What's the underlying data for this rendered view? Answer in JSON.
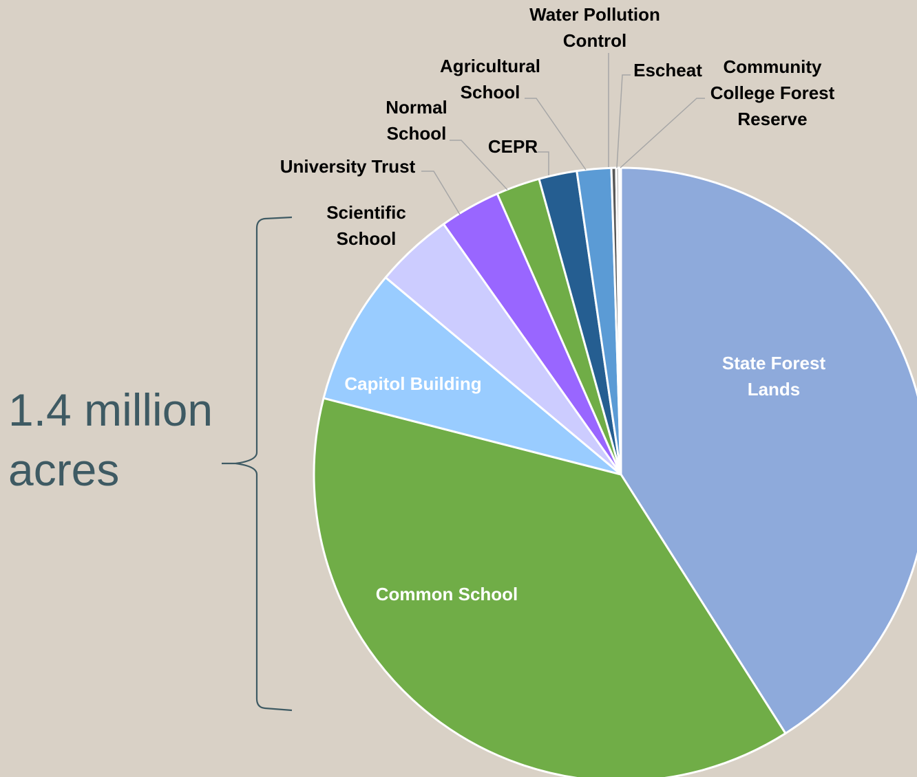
{
  "summary": {
    "line1": "1.4 million",
    "line2": "acres"
  },
  "chart_data": {
    "type": "pie",
    "title": "",
    "start_angle_deg": 0,
    "direction": "clockwise",
    "slices": [
      {
        "label": "State Forest Lands",
        "value": 41.0,
        "color": "#8EAADB",
        "label_color": "#FFFFFF",
        "label_inside": true
      },
      {
        "label": "Common School",
        "value": 38.0,
        "color": "#70AD47",
        "label_color": "#FFFFFF",
        "label_inside": true
      },
      {
        "label": "Capitol Building",
        "value": 7.1,
        "color": "#99CCFF",
        "label_color": "#FFFFFF",
        "label_inside": true
      },
      {
        "label": "Scientific School",
        "value": 4.1,
        "color": "#CCCCFF",
        "label_color": "#000000",
        "label_inside": false
      },
      {
        "label": "University Trust",
        "value": 3.2,
        "color": "#9966FF",
        "label_color": "#000000",
        "label_inside": false
      },
      {
        "label": "Normal School",
        "value": 2.3,
        "color": "#70AD47",
        "label_color": "#000000",
        "label_inside": false
      },
      {
        "label": "CEPR",
        "value": 2.0,
        "color": "#255E91",
        "label_color": "#000000",
        "label_inside": false
      },
      {
        "label": "Agricultural School",
        "value": 1.8,
        "color": "#5B9BD5",
        "label_color": "#000000",
        "label_inside": false
      },
      {
        "label": "Water Pollution Control",
        "value": 0.25,
        "color": "#595959",
        "label_color": "#000000",
        "label_inside": false
      },
      {
        "label": "Escheat",
        "value": 0.15,
        "color": "#A5A5A5",
        "label_color": "#000000",
        "label_inside": false
      },
      {
        "label": "Community College Forest Reserve",
        "value": 0.1,
        "color": "#BF9000",
        "label_color": "#000000",
        "label_inside": false
      }
    ]
  }
}
